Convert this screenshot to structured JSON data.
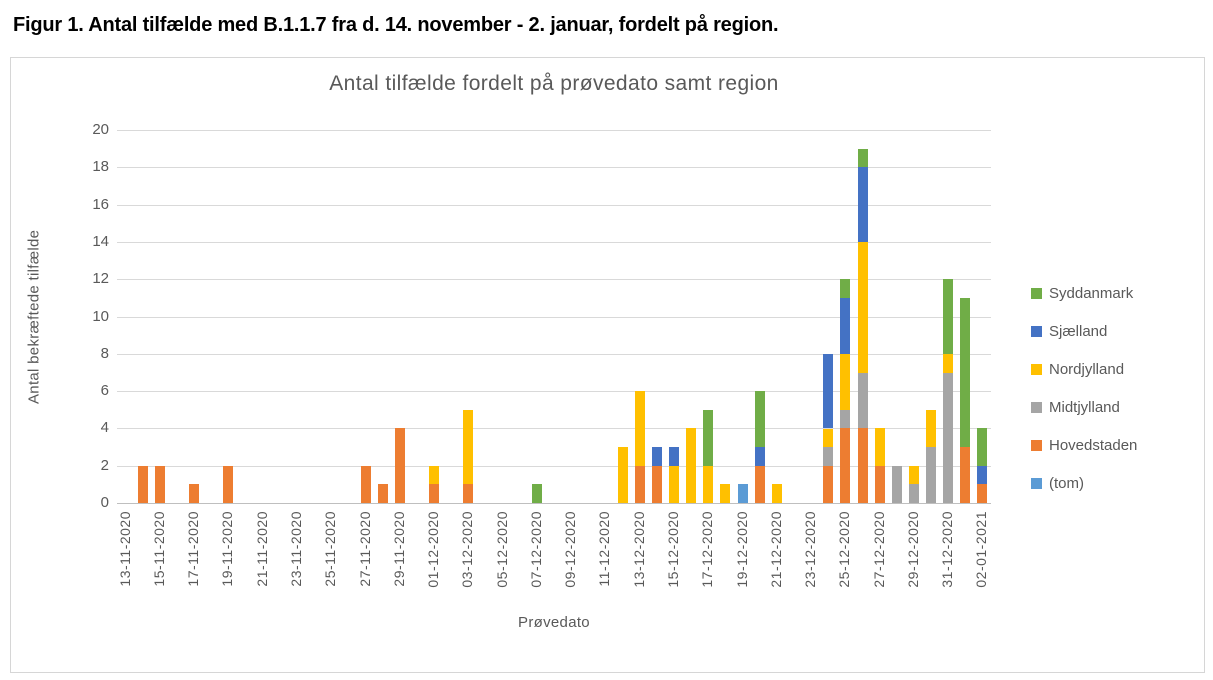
{
  "figure_title": "Figur 1. Antal tilfælde med B.1.1.7 fra d. 14. november - 2. januar, fordelt på region.",
  "chart_data": {
    "type": "bar",
    "stacked": true,
    "title": "Antal tilfælde fordelt på prøvedato samt region",
    "xlabel": "Prøvedato",
    "ylabel": "Antal bekræftede tilfælde",
    "ylim": [
      0,
      20
    ],
    "ytick_step": 2,
    "xtick_every": 2,
    "grid": "horizontal",
    "legend_position": "right",
    "legend_order": [
      "Syddanmark",
      "Sjælland",
      "Nordjylland",
      "Midtjylland",
      "Hovedstaden",
      "(tom)"
    ],
    "categories": [
      "13-11-2020",
      "14-11-2020",
      "15-11-2020",
      "16-11-2020",
      "17-11-2020",
      "18-11-2020",
      "19-11-2020",
      "20-11-2020",
      "21-11-2020",
      "22-11-2020",
      "23-11-2020",
      "24-11-2020",
      "25-11-2020",
      "26-11-2020",
      "27-11-2020",
      "28-11-2020",
      "29-11-2020",
      "30-11-2020",
      "01-12-2020",
      "02-12-2020",
      "03-12-2020",
      "04-12-2020",
      "05-12-2020",
      "06-12-2020",
      "07-12-2020",
      "08-12-2020",
      "09-12-2020",
      "10-12-2020",
      "11-12-2020",
      "12-12-2020",
      "13-12-2020",
      "14-12-2020",
      "15-12-2020",
      "16-12-2020",
      "17-12-2020",
      "18-12-2020",
      "19-12-2020",
      "20-12-2020",
      "21-12-2020",
      "22-12-2020",
      "23-12-2020",
      "24-12-2020",
      "25-12-2020",
      "26-12-2020",
      "27-12-2020",
      "28-12-2020",
      "29-12-2020",
      "30-12-2020",
      "31-12-2020",
      "01-01-2021",
      "02-01-2021"
    ],
    "series": [
      {
        "name": "Hovedstaden",
        "color": "#ED7D31",
        "values": [
          0,
          2,
          2,
          0,
          1,
          0,
          2,
          0,
          0,
          0,
          0,
          0,
          0,
          0,
          2,
          1,
          4,
          0,
          1,
          0,
          1,
          0,
          0,
          0,
          0,
          0,
          0,
          0,
          0,
          0,
          2,
          2,
          0,
          0,
          0,
          0,
          0,
          2,
          0,
          0,
          0,
          2,
          4,
          4,
          2,
          0,
          0,
          0,
          0,
          3,
          1
        ]
      },
      {
        "name": "Midtjylland",
        "color": "#A5A5A5",
        "values": [
          0,
          0,
          0,
          0,
          0,
          0,
          0,
          0,
          0,
          0,
          0,
          0,
          0,
          0,
          0,
          0,
          0,
          0,
          0,
          0,
          0,
          0,
          0,
          0,
          0,
          0,
          0,
          0,
          0,
          0,
          0,
          0,
          0,
          0,
          0,
          0,
          0,
          0,
          0,
          0,
          0,
          1,
          1,
          3,
          0,
          2,
          1,
          3,
          7,
          0,
          0
        ]
      },
      {
        "name": "Nordjylland",
        "color": "#FFC000",
        "values": [
          0,
          0,
          0,
          0,
          0,
          0,
          0,
          0,
          0,
          0,
          0,
          0,
          0,
          0,
          0,
          0,
          0,
          0,
          1,
          0,
          4,
          0,
          0,
          0,
          0,
          0,
          0,
          0,
          0,
          3,
          4,
          0,
          2,
          4,
          2,
          1,
          0,
          0,
          1,
          0,
          0,
          1,
          3,
          7,
          2,
          0,
          1,
          2,
          1,
          0,
          0
        ]
      },
      {
        "name": "Sjælland",
        "color": "#4472C4",
        "values": [
          0,
          0,
          0,
          0,
          0,
          0,
          0,
          0,
          0,
          0,
          0,
          0,
          0,
          0,
          0,
          0,
          0,
          0,
          0,
          0,
          0,
          0,
          0,
          0,
          0,
          0,
          0,
          0,
          0,
          0,
          0,
          1,
          1,
          0,
          0,
          0,
          0,
          1,
          0,
          0,
          0,
          4,
          3,
          4,
          0,
          0,
          0,
          0,
          0,
          0,
          1
        ]
      },
      {
        "name": "Syddanmark",
        "color": "#70AD47",
        "values": [
          0,
          0,
          0,
          0,
          0,
          0,
          0,
          0,
          0,
          0,
          0,
          0,
          0,
          0,
          0,
          0,
          0,
          0,
          0,
          0,
          0,
          0,
          0,
          0,
          1,
          0,
          0,
          0,
          0,
          0,
          0,
          0,
          0,
          0,
          3,
          0,
          0,
          3,
          0,
          0,
          0,
          0,
          1,
          1,
          0,
          0,
          0,
          0,
          4,
          8,
          2
        ]
      },
      {
        "name": "(tom)",
        "color": "#5B9BD5",
        "values": [
          0,
          0,
          0,
          0,
          0,
          0,
          0,
          0,
          0,
          0,
          0,
          0,
          0,
          0,
          0,
          0,
          0,
          0,
          0,
          0,
          0,
          0,
          0,
          0,
          0,
          0,
          0,
          0,
          0,
          0,
          0,
          0,
          0,
          0,
          0,
          0,
          1,
          0,
          0,
          0,
          0,
          0,
          0,
          0,
          0,
          0,
          0,
          0,
          0,
          0,
          0
        ]
      }
    ]
  }
}
